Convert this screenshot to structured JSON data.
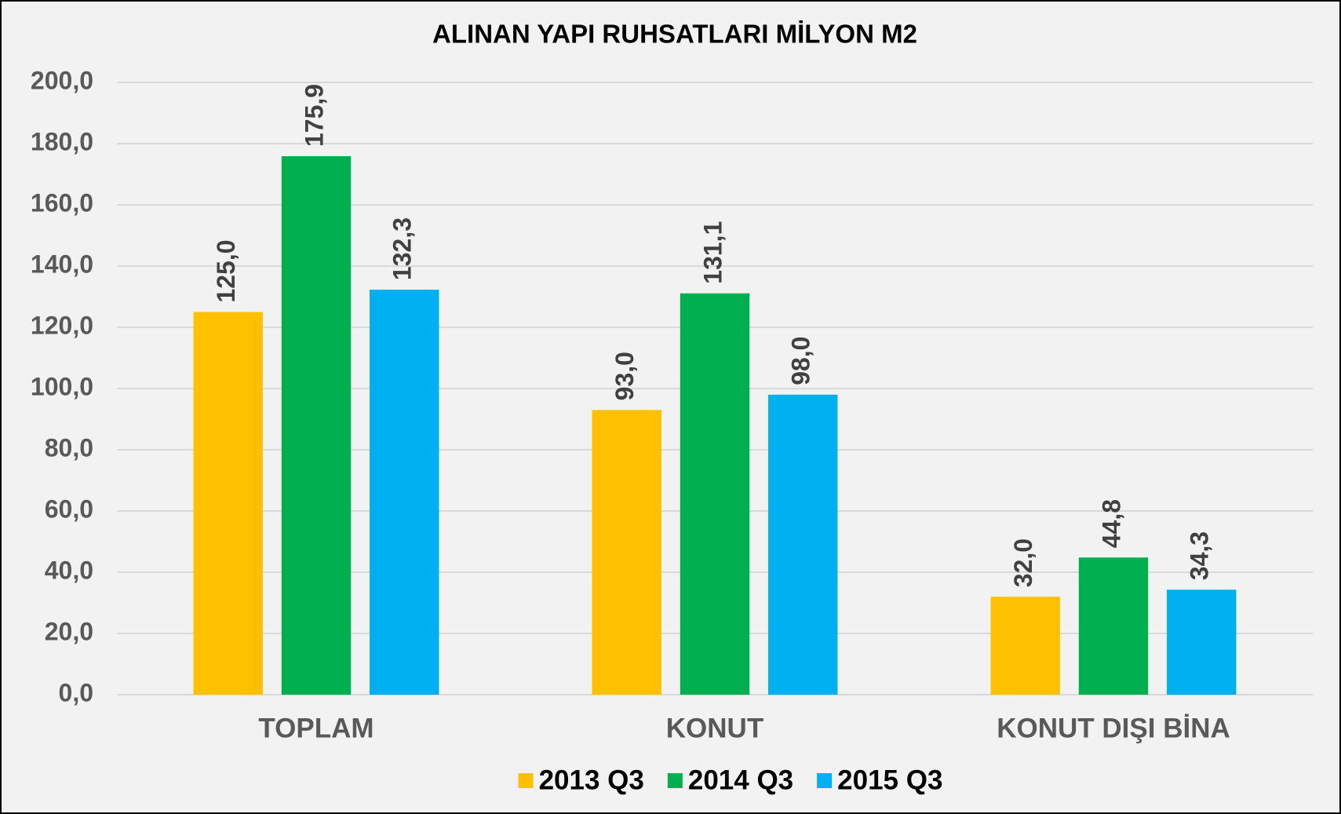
{
  "chart_data": {
    "type": "bar",
    "title": "ALINAN YAPI RUHSATLARI  MİLYON M2",
    "categories": [
      "TOPLAM",
      "KONUT",
      "KONUT DIŞI BİNA"
    ],
    "series": [
      {
        "name": "2013 Q3",
        "color": "#ffc000",
        "values": [
          125.0,
          93.0,
          32.0
        ],
        "value_labels": [
          "125,0",
          "93,0",
          "32,0"
        ]
      },
      {
        "name": "2014 Q3",
        "color": "#00b050",
        "values": [
          175.9,
          131.1,
          44.8
        ],
        "value_labels": [
          "175,9",
          "131,1",
          "44,8"
        ]
      },
      {
        "name": "2015 Q3",
        "color": "#00b0f0",
        "values": [
          132.3,
          98.0,
          34.3
        ],
        "value_labels": [
          "132,3",
          "98,0",
          "34,3"
        ]
      }
    ],
    "ylim": [
      0,
      200
    ],
    "yticks": [
      {
        "value": 0,
        "label": "0,0"
      },
      {
        "value": 20,
        "label": "20,0"
      },
      {
        "value": 40,
        "label": "40,0"
      },
      {
        "value": 60,
        "label": "60,0"
      },
      {
        "value": 80,
        "label": "80,0"
      },
      {
        "value": 100,
        "label": "100,0"
      },
      {
        "value": 120,
        "label": "120,0"
      },
      {
        "value": 140,
        "label": "140,0"
      },
      {
        "value": 160,
        "label": "160,0"
      },
      {
        "value": 180,
        "label": "180,0"
      },
      {
        "value": 200,
        "label": "200,0"
      }
    ],
    "grid": true,
    "legend": "bottom"
  }
}
